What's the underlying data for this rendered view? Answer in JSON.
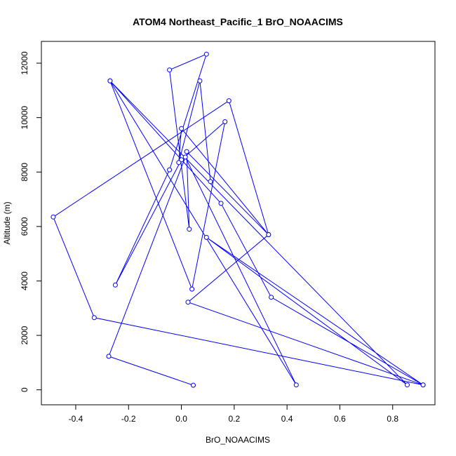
{
  "chart_data": {
    "type": "line",
    "title": "ATOM4 Northeast_Pacific_1 BrO_NOAACIMS",
    "xlabel": "BrO_NOAACIMS",
    "ylabel": "Altitude (m)",
    "xlim": [
      -0.53,
      0.96
    ],
    "ylim": [
      -550,
      12800
    ],
    "x_ticks": [
      -0.4,
      -0.2,
      0.0,
      0.2,
      0.4,
      0.6,
      0.8
    ],
    "x_tick_labels": [
      "-0.4",
      "-0.2",
      "0.0",
      "0.2",
      "0.4",
      "0.6",
      "0.8"
    ],
    "y_ticks": [
      0,
      2000,
      4000,
      6000,
      8000,
      10000,
      12000
    ],
    "y_tick_labels": [
      "0",
      "2000",
      "4000",
      "6000",
      "8000",
      "10000",
      "12000"
    ],
    "grid": false,
    "series": [
      {
        "color": "#0000ff",
        "marker": "open-circle",
        "points": [
          {
            "x": 0.045,
            "y": 170
          },
          {
            "x": -0.275,
            "y": 1230
          },
          {
            "x": 0.015,
            "y": 8550
          },
          {
            "x": 0.435,
            "y": 180
          },
          {
            "x": -0.27,
            "y": 11350
          },
          {
            "x": 0.04,
            "y": 3700
          },
          {
            "x": 0.165,
            "y": 9850
          },
          {
            "x": 0.0,
            "y": 8450
          },
          {
            "x": -0.25,
            "y": 3850
          },
          {
            "x": -0.045,
            "y": 8080
          },
          {
            "x": 0.095,
            "y": 12330
          },
          {
            "x": -0.045,
            "y": 11750
          },
          {
            "x": 0.03,
            "y": 5900
          },
          {
            "x": 0.02,
            "y": 8750
          },
          {
            "x": 0.33,
            "y": 5700
          },
          {
            "x": 0.18,
            "y": 10620
          },
          {
            "x": -0.485,
            "y": 6350
          },
          {
            "x": -0.33,
            "y": 2650
          },
          {
            "x": 0.915,
            "y": 180
          },
          {
            "x": 0.095,
            "y": 5600
          },
          {
            "x": 0.855,
            "y": 180
          },
          {
            "x": -0.27,
            "y": 11350
          },
          {
            "x": 0.15,
            "y": 6850
          },
          {
            "x": 0.34,
            "y": 3400
          },
          {
            "x": 0.915,
            "y": 180
          },
          {
            "x": 0.025,
            "y": 3220
          },
          {
            "x": 0.33,
            "y": 5700
          },
          {
            "x": 0.0,
            "y": 9600
          },
          {
            "x": -0.01,
            "y": 8350
          },
          {
            "x": 0.07,
            "y": 11350
          },
          {
            "x": 0.11,
            "y": 7650
          }
        ]
      }
    ]
  }
}
